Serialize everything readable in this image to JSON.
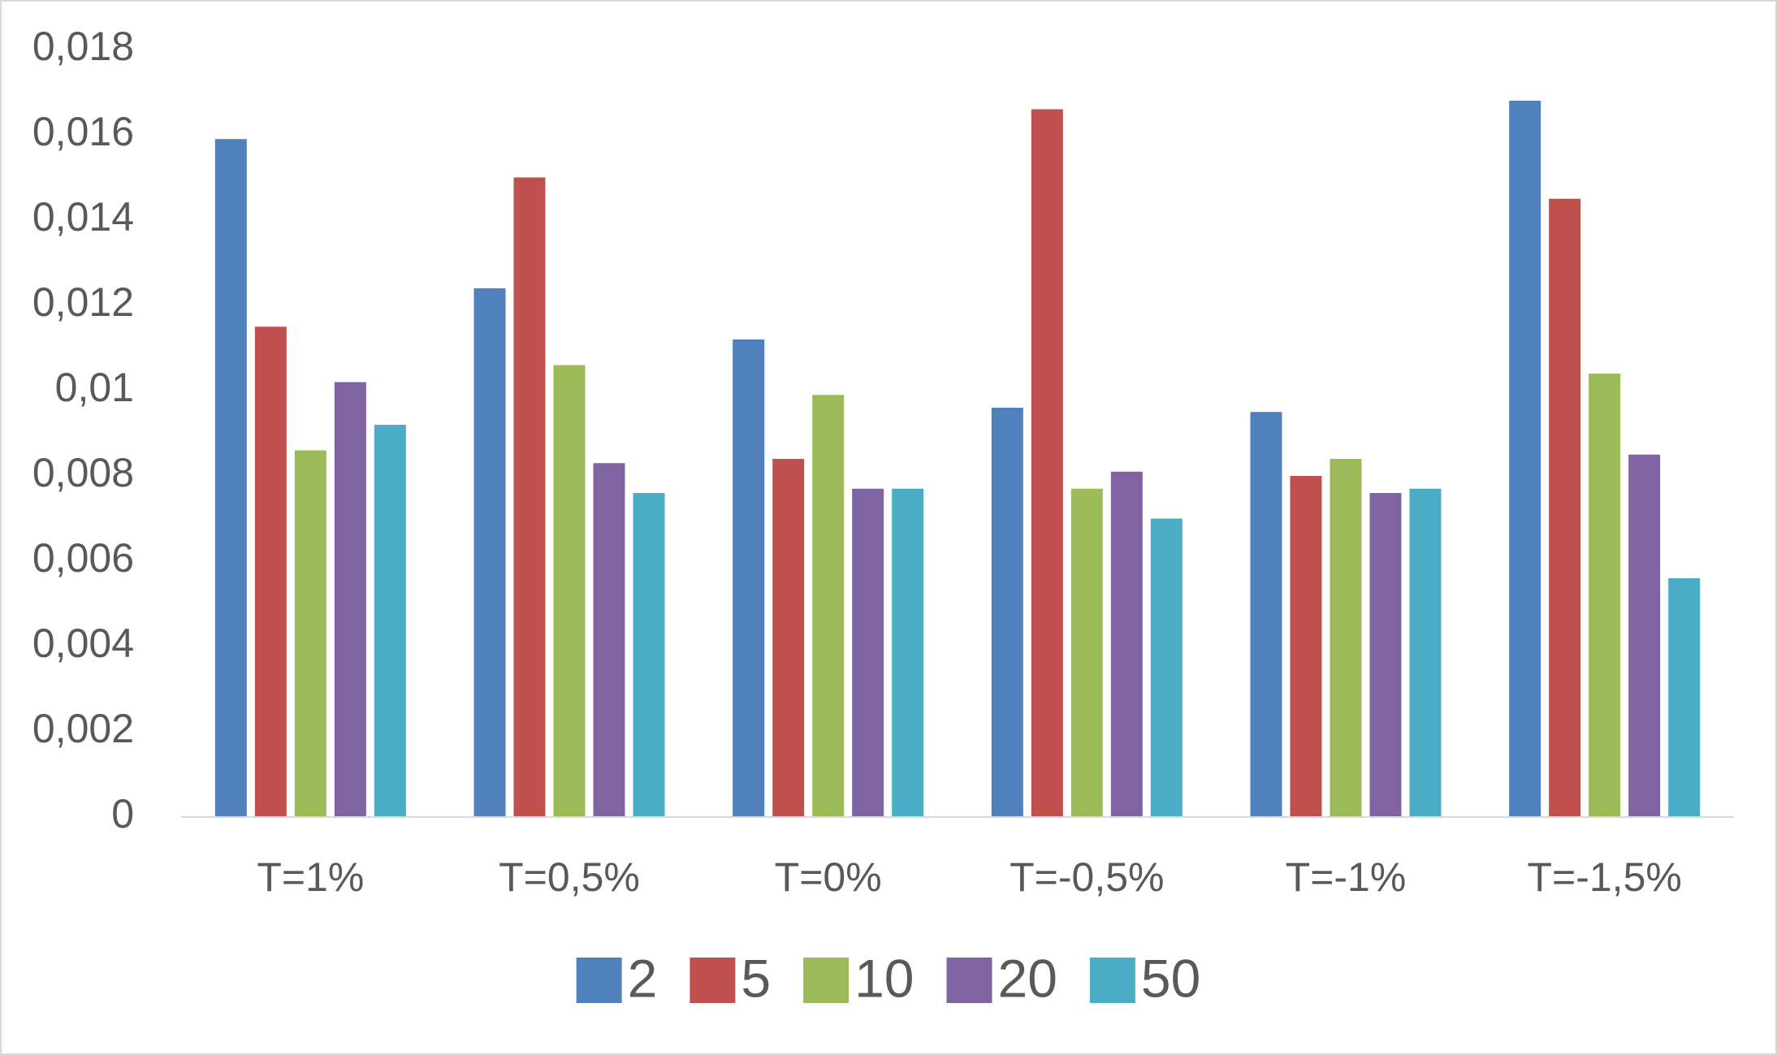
{
  "chart_data": {
    "type": "bar",
    "categories": [
      "T=1%",
      "T=0,5%",
      "T=0%",
      "T=-0,5%",
      "T=-1%",
      "T=-1,5%"
    ],
    "series": [
      {
        "name": "2",
        "color": "#4f81bd",
        "values": [
          0.0159,
          0.0124,
          0.0112,
          0.0096,
          0.0095,
          0.0168
        ]
      },
      {
        "name": "5",
        "color": "#c0504d",
        "values": [
          0.0115,
          0.015,
          0.0084,
          0.0166,
          0.008,
          0.0145
        ]
      },
      {
        "name": "10",
        "color": "#9bbb59",
        "values": [
          0.0086,
          0.0106,
          0.0099,
          0.0077,
          0.0084,
          0.0104
        ]
      },
      {
        "name": "20",
        "color": "#8064a2",
        "values": [
          0.0102,
          0.0083,
          0.0077,
          0.0081,
          0.0076,
          0.0085
        ]
      },
      {
        "name": "50",
        "color": "#4bacc6",
        "values": [
          0.0092,
          0.0076,
          0.0077,
          0.007,
          0.0077,
          0.0056
        ]
      }
    ],
    "ylim": [
      0,
      0.018
    ],
    "yticks": [
      0,
      {
        "value": 0.002,
        "label": "0,002"
      },
      {
        "value": 0.004,
        "label": "0,004"
      },
      {
        "value": 0.006,
        "label": "0,006"
      },
      {
        "value": 0.008,
        "label": "0,008"
      },
      {
        "value": 0.01,
        "label": "0,01"
      },
      {
        "value": 0.012,
        "label": "0,012"
      },
      {
        "value": 0.014,
        "label": "0,014"
      },
      {
        "value": 0.016,
        "label": "0,016"
      },
      {
        "value": 0.018,
        "label": "0,018"
      }
    ],
    "grid": false,
    "legend": "bottom"
  }
}
